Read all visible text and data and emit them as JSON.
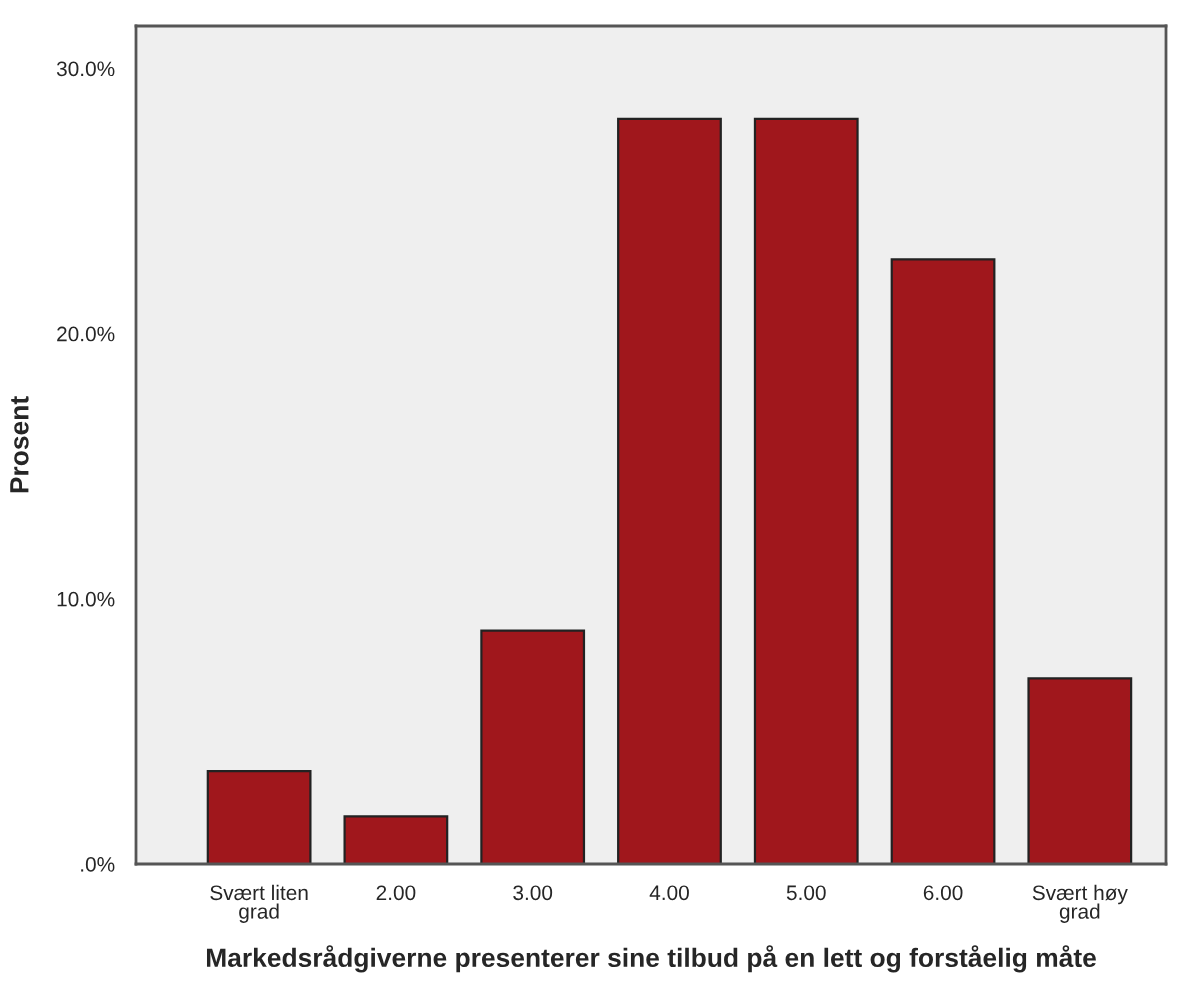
{
  "chart_data": {
    "type": "bar",
    "xlabel": "Markedsrådgiverne presenterer sine tilbud på en lett og forståelig måte",
    "ylabel": "Prosent",
    "categories": [
      "Svært liten\ngrad",
      "2.00",
      "3.00",
      "4.00",
      "5.00",
      "6.00",
      "Svært høy\ngrad"
    ],
    "values": [
      3.5,
      1.8,
      8.8,
      28.1,
      28.1,
      22.8,
      7.0
    ],
    "color": "#a0171c",
    "ylim": [
      0,
      31.6
    ],
    "yticks": [
      {
        "value": 0,
        "label": ".0%"
      },
      {
        "value": 10,
        "label": "10.0%"
      },
      {
        "value": 20,
        "label": "20.0%"
      },
      {
        "value": 30,
        "label": "30.0%"
      }
    ],
    "grid": false
  }
}
